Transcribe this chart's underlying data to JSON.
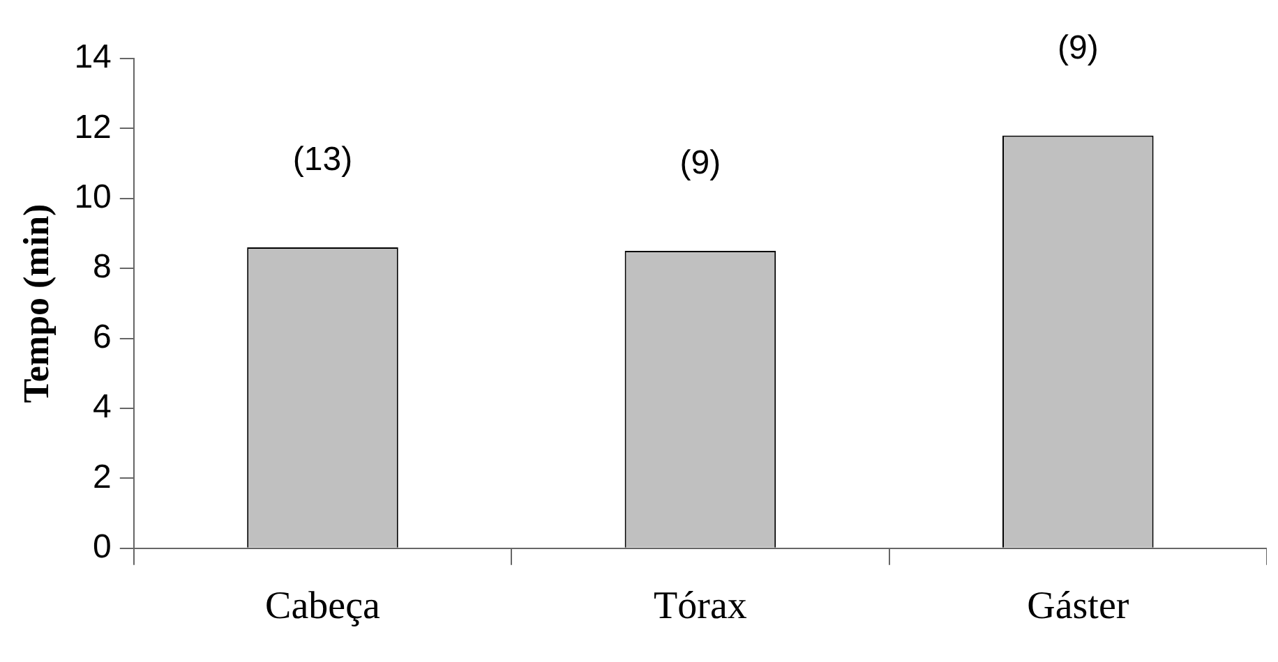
{
  "chart_data": {
    "type": "bar",
    "ylabel": "Tempo (min)",
    "categories": [
      "Cabeça",
      "Tórax",
      "Gáster"
    ],
    "values": [
      8.6,
      8.5,
      11.8
    ],
    "color": "#c0c0c0",
    "ylim": [
      0,
      14
    ],
    "yticks": [
      0,
      2,
      4,
      6,
      8,
      10,
      12,
      14
    ],
    "grid": false,
    "legend": false,
    "annotations": [
      "(13)",
      "(9)",
      "(9)"
    ]
  }
}
